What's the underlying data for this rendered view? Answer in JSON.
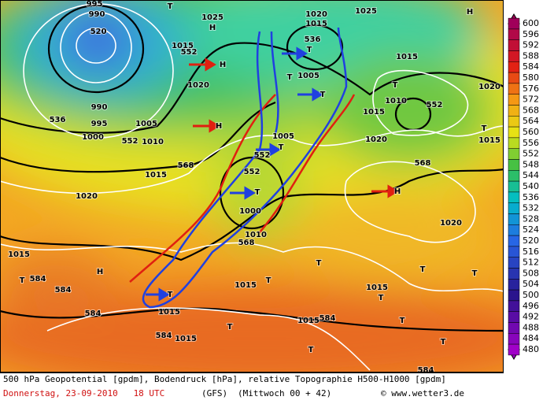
{
  "map": {
    "labels": [
      "995",
      "990",
      "520",
      "T",
      "H",
      "1025",
      "1020",
      "1025",
      "H",
      "536",
      "1015",
      "T",
      "552",
      "H",
      "1015",
      "T",
      "1005",
      "T",
      "1020",
      "1015",
      "T",
      "1010",
      "552",
      "1020",
      "990",
      "536",
      "995",
      "1000",
      "1005",
      "552",
      "1010",
      "H",
      "1015",
      "T",
      "1015",
      "1005",
      "T",
      "552",
      "568",
      "552",
      "1020",
      "568",
      "1015",
      "T",
      "1020",
      "H",
      "1000",
      "1010",
      "568",
      "1020",
      "1015",
      "584",
      "T",
      "H",
      "T",
      "T",
      "T",
      "1015",
      "T",
      "T",
      "584",
      "584",
      "1015",
      "T",
      "1015",
      "T",
      "1015",
      "584",
      "584",
      "1015",
      "T",
      "T",
      "T",
      "584"
    ],
    "colorbar": {
      "ticks": [
        600,
        596,
        592,
        588,
        584,
        580,
        576,
        572,
        568,
        564,
        560,
        556,
        552,
        548,
        544,
        540,
        536,
        532,
        528,
        524,
        520,
        516,
        512,
        508,
        504,
        500,
        496,
        492,
        488,
        484,
        480
      ]
    }
  },
  "footer": {
    "description": "500 hPa Geopotential [gpdm], Bodendruck [hPa], relative Topographie H500-H1000 [gpdm]",
    "date": "Donnerstag, 23-09-2010   18 UTC",
    "model": "(GFS)",
    "run": "(Mittwoch 00 + 42)",
    "credit": "© www.wetter3.de"
  }
}
